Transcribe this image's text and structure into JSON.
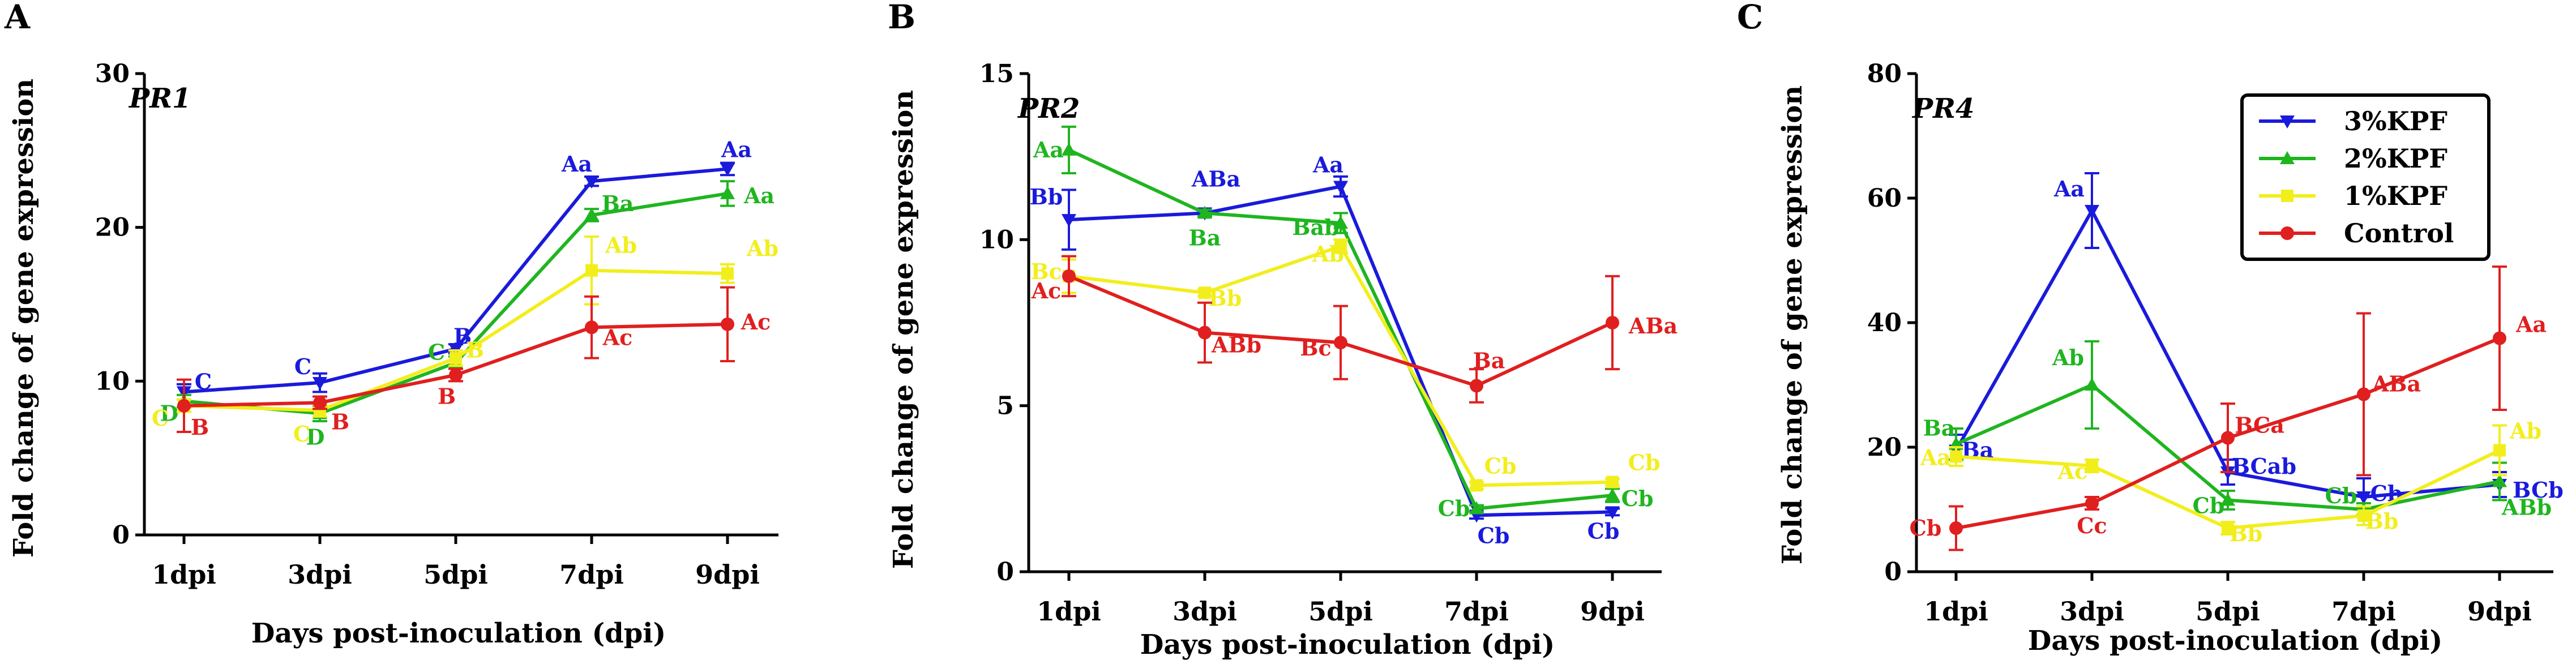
{
  "colors": {
    "blue": "#1a1adc",
    "green": "#1fb51f",
    "yellow": "#f2ee1c",
    "red": "#e01f1f",
    "axis": "#000000"
  },
  "chart_data": [
    {
      "type": "line",
      "panel": "A",
      "gene": "PR1",
      "categories": [
        "1dpi",
        "3dpi",
        "5dpi",
        "7dpi",
        "9dpi"
      ],
      "xlabel": "Days post-inoculation (dpi)",
      "ylabel": "Fold change of gene expression",
      "ylim": [
        0,
        30
      ],
      "yticks": [
        0,
        10,
        20,
        30
      ],
      "series": [
        {
          "name": "3%KPF",
          "color": "blue",
          "marker": "tri-down",
          "values": [
            9.3,
            9.9,
            12.1,
            23.0,
            23.8
          ],
          "errors": [
            0.5,
            0.6,
            0.3,
            0.3,
            0.4
          ],
          "labels": [
            {
              "t": "C",
              "dx": 34,
              "dy": -18
            },
            {
              "t": "C",
              "dx": -30,
              "dy": -28
            },
            {
              "t": "B",
              "dx": 12,
              "dy": -22
            },
            {
              "t": "Aa",
              "dx": -26,
              "dy": -30
            },
            {
              "t": "Aa",
              "dx": 16,
              "dy": -34
            }
          ]
        },
        {
          "name": "2%KPF",
          "color": "green",
          "marker": "tri-up",
          "values": [
            8.7,
            7.9,
            11.2,
            20.8,
            22.2
          ],
          "errors": [
            0.4,
            0.5,
            0.4,
            0.4,
            0.8
          ],
          "labels": [
            {
              "t": "D",
              "dx": -26,
              "dy": 22
            },
            {
              "t": "D",
              "dx": -8,
              "dy": 42
            },
            {
              "t": "C",
              "dx": -34,
              "dy": -18
            },
            {
              "t": "Ba",
              "dx": 46,
              "dy": -20
            },
            {
              "t": "Aa",
              "dx": 56,
              "dy": 4
            }
          ]
        },
        {
          "name": "1%KPF",
          "color": "yellow",
          "marker": "square",
          "values": [
            8.4,
            8.1,
            11.5,
            17.2,
            17.0
          ],
          "errors": [
            0.4,
            0.4,
            0.5,
            2.2,
            0.6
          ],
          "labels": [
            {
              "t": "C",
              "dx": -42,
              "dy": 22
            },
            {
              "t": "C",
              "dx": -32,
              "dy": 42
            },
            {
              "t": "B",
              "dx": 34,
              "dy": -14
            },
            {
              "t": "Ab",
              "dx": 52,
              "dy": -44
            },
            {
              "t": "Ab",
              "dx": 62,
              "dy": -44
            }
          ]
        },
        {
          "name": "Control",
          "color": "red",
          "marker": "circle",
          "values": [
            8.4,
            8.6,
            10.4,
            13.5,
            13.7
          ],
          "errors": [
            1.7,
            0.4,
            0.4,
            2.0,
            2.4
          ],
          "labels": [
            {
              "t": "B",
              "dx": 28,
              "dy": 38
            },
            {
              "t": "B",
              "dx": 36,
              "dy": 34
            },
            {
              "t": "B",
              "dx": -16,
              "dy": 38
            },
            {
              "t": "Ac",
              "dx": 46,
              "dy": 18
            },
            {
              "t": "Ac",
              "dx": 50,
              "dy": -4
            }
          ]
        }
      ]
    },
    {
      "type": "line",
      "panel": "B",
      "gene": "PR2",
      "categories": [
        "1dpi",
        "3dpi",
        "5dpi",
        "7dpi",
        "9dpi"
      ],
      "xlabel": "Days post-inoculation (dpi)",
      "ylabel": "Fold change of gene expression",
      "ylim": [
        0,
        15
      ],
      "yticks": [
        0,
        5,
        10,
        15
      ],
      "series": [
        {
          "name": "3%KPF",
          "color": "blue",
          "marker": "tri-down",
          "values": [
            10.6,
            10.8,
            11.6,
            1.7,
            1.8
          ],
          "errors": [
            0.9,
            0.1,
            0.3,
            0.1,
            0.1
          ],
          "labels": [
            {
              "t": "Bb",
              "dx": -40,
              "dy": -40
            },
            {
              "t": "ABa",
              "dx": 20,
              "dy": -60
            },
            {
              "t": "Aa",
              "dx": -22,
              "dy": -38
            },
            {
              "t": "Cb",
              "dx": 30,
              "dy": 36
            },
            {
              "t": "Cb",
              "dx": -16,
              "dy": 34
            }
          ]
        },
        {
          "name": "2%KPF",
          "color": "green",
          "marker": "tri-up",
          "values": [
            12.7,
            10.8,
            10.5,
            1.9,
            2.3
          ],
          "errors": [
            0.7,
            0.1,
            0.3,
            0.1,
            0.2
          ],
          "labels": [
            {
              "t": "Aa",
              "dx": -36,
              "dy": 0
            },
            {
              "t": "Ba",
              "dx": 0,
              "dy": 44
            },
            {
              "t": "Bab",
              "dx": -44,
              "dy": 8
            },
            {
              "t": "Cb",
              "dx": -40,
              "dy": 0
            },
            {
              "t": "Cb",
              "dx": 44,
              "dy": 6
            }
          ]
        },
        {
          "name": "1%KPF",
          "color": "yellow",
          "marker": "square",
          "values": [
            8.9,
            8.4,
            9.8,
            2.6,
            2.7
          ],
          "errors": [
            0.5,
            0.1,
            0.2,
            0.1,
            0.1
          ],
          "labels": [
            {
              "t": "Bc",
              "dx": -40,
              "dy": -8
            },
            {
              "t": "Bb",
              "dx": 36,
              "dy": 10
            },
            {
              "t": "Ab",
              "dx": -22,
              "dy": 14
            },
            {
              "t": "Cb",
              "dx": 42,
              "dy": -34
            },
            {
              "t": "Cb",
              "dx": 56,
              "dy": -34
            }
          ]
        },
        {
          "name": "Control",
          "color": "red",
          "marker": "circle",
          "values": [
            8.9,
            7.2,
            6.9,
            5.6,
            7.5
          ],
          "errors": [
            0.6,
            0.9,
            1.1,
            0.5,
            1.4
          ],
          "labels": [
            {
              "t": "Ac",
              "dx": -40,
              "dy": 26
            },
            {
              "t": "ABb",
              "dx": 56,
              "dy": 22
            },
            {
              "t": "Bc",
              "dx": -44,
              "dy": 10
            },
            {
              "t": "Ba",
              "dx": 22,
              "dy": -44
            },
            {
              "t": "ABa",
              "dx": 72,
              "dy": 6
            }
          ]
        }
      ]
    },
    {
      "type": "line",
      "panel": "C",
      "gene": "PR4",
      "categories": [
        "1dpi",
        "3dpi",
        "5dpi",
        "7dpi",
        "9dpi"
      ],
      "xlabel": "Days post-inoculation (dpi)",
      "ylabel": "Fold change of gene expression",
      "ylim": [
        0,
        80
      ],
      "yticks": [
        0,
        20,
        40,
        60,
        80
      ],
      "legend": "top-right",
      "series": [
        {
          "name": "3%KPF",
          "color": "blue",
          "marker": "tri-down",
          "values": [
            19.5,
            58.0,
            16.0,
            12.0,
            14.0
          ],
          "errors": [
            2.5,
            6.0,
            2.0,
            3.0,
            2.0
          ],
          "labels": [
            {
              "t": "Ba",
              "dx": 38,
              "dy": 0
            },
            {
              "t": "Aa",
              "dx": -40,
              "dy": -38
            },
            {
              "t": "BCab",
              "dx": 64,
              "dy": -10
            },
            {
              "t": "Cb",
              "dx": 40,
              "dy": -6
            },
            {
              "t": "BCb",
              "dx": 68,
              "dy": 10
            }
          ]
        },
        {
          "name": "2%KPF",
          "color": "green",
          "marker": "tri-up",
          "values": [
            20.5,
            30.0,
            11.5,
            10.0,
            14.5
          ],
          "errors": [
            2.5,
            7.0,
            1.5,
            1.0,
            3.0
          ],
          "labels": [
            {
              "t": "Ba",
              "dx": -30,
              "dy": -28
            },
            {
              "t": "Ab",
              "dx": -42,
              "dy": -48
            },
            {
              "t": "Cb",
              "dx": -34,
              "dy": 10
            },
            {
              "t": "Cb",
              "dx": -40,
              "dy": -24
            },
            {
              "t": "ABb",
              "dx": 48,
              "dy": 46
            }
          ]
        },
        {
          "name": "1%KPF",
          "color": "yellow",
          "marker": "square",
          "values": [
            18.5,
            17.0,
            7.0,
            9.0,
            19.5
          ],
          "errors": [
            1.5,
            1.0,
            1.0,
            1.5,
            4.0
          ],
          "labels": [
            {
              "t": "Aa",
              "dx": -36,
              "dy": 2
            },
            {
              "t": "Ac",
              "dx": -34,
              "dy": 10
            },
            {
              "t": "Bb",
              "dx": 32,
              "dy": 10
            },
            {
              "t": "Bb",
              "dx": 32,
              "dy": 10
            },
            {
              "t": "Ab",
              "dx": 46,
              "dy": -34
            }
          ]
        },
        {
          "name": "Control",
          "color": "red",
          "marker": "circle",
          "values": [
            7.0,
            11.0,
            21.5,
            28.5,
            37.5
          ],
          "errors": [
            3.5,
            1.0,
            5.5,
            13.0,
            11.5
          ],
          "labels": [
            {
              "t": "Cb",
              "dx": -54,
              "dy": 0
            },
            {
              "t": "Cc",
              "dx": 0,
              "dy": 40
            },
            {
              "t": "BCa",
              "dx": 56,
              "dy": -22
            },
            {
              "t": "ABa",
              "dx": 58,
              "dy": -18
            },
            {
              "t": "Aa",
              "dx": 56,
              "dy": -24
            }
          ]
        }
      ]
    }
  ]
}
